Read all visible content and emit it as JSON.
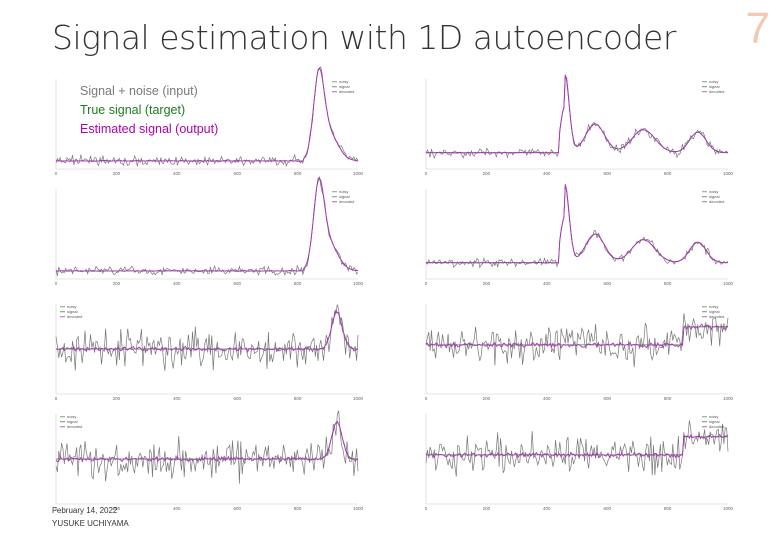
{
  "slide": {
    "title": "Signal estimation with 1D autoencoder",
    "number": "7",
    "date": "February 14, 2022",
    "author": "YUSUKE UCHIYAMA"
  },
  "legend": {
    "noisy": "Signal + noise (input)",
    "signal": "True signal (target)",
    "estimated": "Estimated signal (output)"
  },
  "colors": {
    "noisy": "#777777",
    "signal": "#2e8b2e",
    "estimated": "#b52fc4"
  },
  "mini_legend": [
    "noisy",
    "signal",
    "decoded"
  ],
  "panels": [
    {
      "name": "panel-r1-left",
      "kind": "low-noise-edge",
      "xticks": [
        "0",
        "200",
        "400",
        "600",
        "800",
        "1000"
      ]
    },
    {
      "name": "panel-r1-right",
      "kind": "low-noise-peaks",
      "xticks": [
        "0",
        "200",
        "400",
        "600",
        "800",
        "1000"
      ]
    },
    {
      "name": "panel-r2-left",
      "kind": "low-noise-edge",
      "xticks": [
        "0",
        "200",
        "400",
        "600",
        "800",
        "1000"
      ]
    },
    {
      "name": "panel-r2-right",
      "kind": "low-noise-peaks",
      "xticks": [
        "0",
        "200",
        "400",
        "600",
        "800",
        "1000"
      ]
    },
    {
      "name": "panel-r3-left",
      "kind": "high-noise-edge",
      "xticks": [
        "0",
        "200",
        "400",
        "600",
        "800",
        "1000"
      ]
    },
    {
      "name": "panel-r3-right",
      "kind": "high-noise-box",
      "xticks": [
        "0",
        "200",
        "400",
        "600",
        "800",
        "1000"
      ]
    },
    {
      "name": "panel-r4-left",
      "kind": "high-noise-edge",
      "xticks": [
        "0",
        "200",
        "400",
        "600",
        "800",
        "1000"
      ]
    },
    {
      "name": "panel-r4-right",
      "kind": "high-noise-box",
      "xticks": [
        "0",
        "200",
        "400",
        "600",
        "800",
        "1000"
      ]
    }
  ]
}
